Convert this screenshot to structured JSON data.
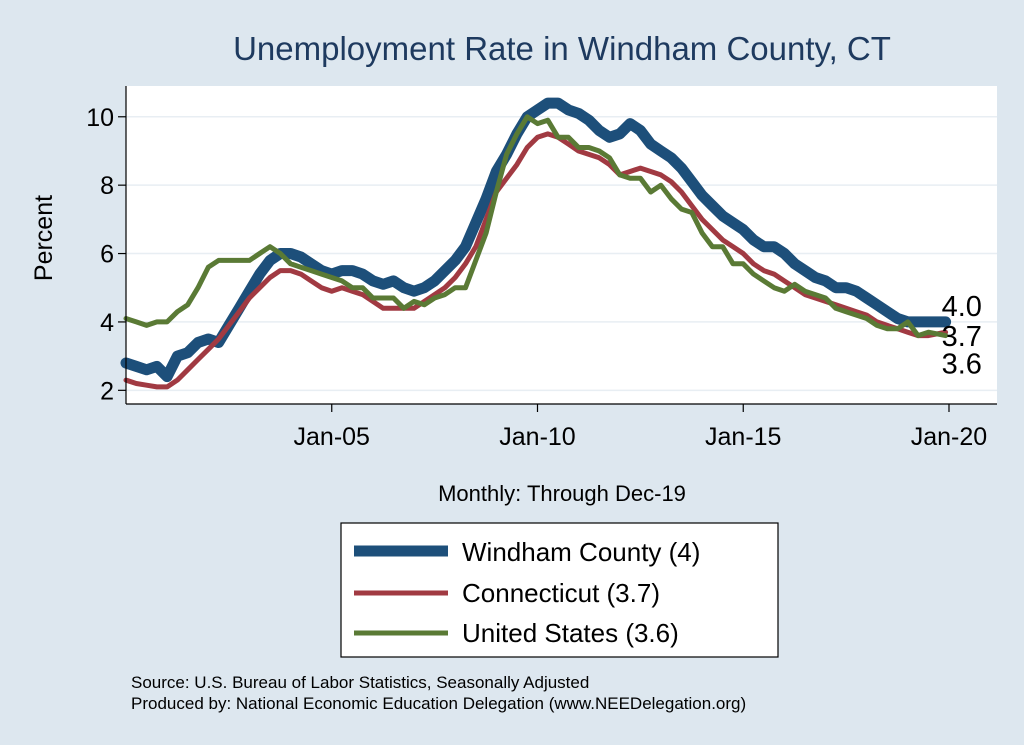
{
  "chart_data": {
    "type": "line",
    "title": "Unemployment Rate in Windham  County, CT",
    "ylabel": "Percent",
    "xlabel": "Monthly: Through Dec-19",
    "x_ticks": [
      "Jan-05",
      "Jan-10",
      "Jan-15",
      "Jan-20"
    ],
    "y_ticks": [
      "2",
      "4",
      "6",
      "8",
      "10"
    ],
    "ylim": [
      1.6,
      10.9
    ],
    "xlim": [
      "2000-01",
      "2021-03"
    ],
    "grid": true,
    "legend_position": "bottom",
    "series": [
      {
        "name": "Windham  County (4)",
        "color": "#1d4f7a",
        "end_label": "4.0",
        "points": [
          [
            "2000-01",
            2.8
          ],
          [
            "2000-04",
            2.7
          ],
          [
            "2000-07",
            2.6
          ],
          [
            "2000-10",
            2.7
          ],
          [
            "2001-01",
            2.4
          ],
          [
            "2001-04",
            3.0
          ],
          [
            "2001-07",
            3.1
          ],
          [
            "2001-10",
            3.4
          ],
          [
            "2002-01",
            3.5
          ],
          [
            "2002-04",
            3.4
          ],
          [
            "2002-07",
            3.9
          ],
          [
            "2002-10",
            4.4
          ],
          [
            "2003-01",
            4.9
          ],
          [
            "2003-04",
            5.4
          ],
          [
            "2003-07",
            5.8
          ],
          [
            "2003-10",
            6.0
          ],
          [
            "2004-01",
            6.0
          ],
          [
            "2004-04",
            5.9
          ],
          [
            "2004-07",
            5.7
          ],
          [
            "2004-10",
            5.5
          ],
          [
            "2005-01",
            5.4
          ],
          [
            "2005-04",
            5.5
          ],
          [
            "2005-07",
            5.5
          ],
          [
            "2005-10",
            5.4
          ],
          [
            "2006-01",
            5.2
          ],
          [
            "2006-04",
            5.1
          ],
          [
            "2006-07",
            5.2
          ],
          [
            "2006-10",
            5.0
          ],
          [
            "2007-01",
            4.9
          ],
          [
            "2007-04",
            5.0
          ],
          [
            "2007-07",
            5.2
          ],
          [
            "2007-10",
            5.5
          ],
          [
            "2008-01",
            5.8
          ],
          [
            "2008-04",
            6.2
          ],
          [
            "2008-07",
            6.9
          ],
          [
            "2008-10",
            7.6
          ],
          [
            "2009-01",
            8.4
          ],
          [
            "2009-04",
            8.9
          ],
          [
            "2009-07",
            9.5
          ],
          [
            "2009-10",
            10.0
          ],
          [
            "2010-01",
            10.2
          ],
          [
            "2010-04",
            10.4
          ],
          [
            "2010-07",
            10.4
          ],
          [
            "2010-10",
            10.2
          ],
          [
            "2011-01",
            10.1
          ],
          [
            "2011-04",
            9.9
          ],
          [
            "2011-07",
            9.6
          ],
          [
            "2011-10",
            9.4
          ],
          [
            "2012-01",
            9.5
          ],
          [
            "2012-04",
            9.8
          ],
          [
            "2012-07",
            9.6
          ],
          [
            "2012-10",
            9.2
          ],
          [
            "2013-01",
            9.0
          ],
          [
            "2013-04",
            8.8
          ],
          [
            "2013-07",
            8.5
          ],
          [
            "2013-10",
            8.1
          ],
          [
            "2014-01",
            7.7
          ],
          [
            "2014-04",
            7.4
          ],
          [
            "2014-07",
            7.1
          ],
          [
            "2014-10",
            6.9
          ],
          [
            "2015-01",
            6.7
          ],
          [
            "2015-04",
            6.4
          ],
          [
            "2015-07",
            6.2
          ],
          [
            "2015-10",
            6.2
          ],
          [
            "2016-01",
            6.0
          ],
          [
            "2016-04",
            5.7
          ],
          [
            "2016-07",
            5.5
          ],
          [
            "2016-10",
            5.3
          ],
          [
            "2017-01",
            5.2
          ],
          [
            "2017-04",
            5.0
          ],
          [
            "2017-07",
            5.0
          ],
          [
            "2017-10",
            4.9
          ],
          [
            "2018-01",
            4.7
          ],
          [
            "2018-04",
            4.5
          ],
          [
            "2018-07",
            4.3
          ],
          [
            "2018-10",
            4.1
          ],
          [
            "2019-01",
            4.0
          ],
          [
            "2019-04",
            4.0
          ],
          [
            "2019-07",
            4.0
          ],
          [
            "2019-12",
            4.0
          ]
        ]
      },
      {
        "name": "Connecticut (3.7)",
        "color": "#a13a42",
        "end_label": "3.7",
        "points": [
          [
            "2000-01",
            2.3
          ],
          [
            "2000-04",
            2.2
          ],
          [
            "2000-07",
            2.15
          ],
          [
            "2000-10",
            2.1
          ],
          [
            "2001-01",
            2.1
          ],
          [
            "2001-04",
            2.3
          ],
          [
            "2001-07",
            2.6
          ],
          [
            "2001-10",
            2.9
          ],
          [
            "2002-01",
            3.2
          ],
          [
            "2002-04",
            3.5
          ],
          [
            "2002-07",
            3.9
          ],
          [
            "2002-10",
            4.3
          ],
          [
            "2003-01",
            4.7
          ],
          [
            "2003-04",
            5.0
          ],
          [
            "2003-07",
            5.3
          ],
          [
            "2003-10",
            5.5
          ],
          [
            "2004-01",
            5.5
          ],
          [
            "2004-04",
            5.4
          ],
          [
            "2004-07",
            5.2
          ],
          [
            "2004-10",
            5.0
          ],
          [
            "2005-01",
            4.9
          ],
          [
            "2005-04",
            5.0
          ],
          [
            "2005-07",
            4.9
          ],
          [
            "2005-10",
            4.8
          ],
          [
            "2006-01",
            4.6
          ],
          [
            "2006-04",
            4.4
          ],
          [
            "2006-07",
            4.4
          ],
          [
            "2006-10",
            4.4
          ],
          [
            "2007-01",
            4.4
          ],
          [
            "2007-04",
            4.6
          ],
          [
            "2007-07",
            4.8
          ],
          [
            "2007-10",
            5.0
          ],
          [
            "2008-01",
            5.3
          ],
          [
            "2008-04",
            5.7
          ],
          [
            "2008-07",
            6.2
          ],
          [
            "2008-10",
            7.0
          ],
          [
            "2009-01",
            7.8
          ],
          [
            "2009-04",
            8.2
          ],
          [
            "2009-07",
            8.6
          ],
          [
            "2009-10",
            9.1
          ],
          [
            "2010-01",
            9.4
          ],
          [
            "2010-04",
            9.5
          ],
          [
            "2010-07",
            9.4
          ],
          [
            "2010-10",
            9.2
          ],
          [
            "2011-01",
            9.0
          ],
          [
            "2011-04",
            8.9
          ],
          [
            "2011-07",
            8.8
          ],
          [
            "2011-10",
            8.6
          ],
          [
            "2012-01",
            8.3
          ],
          [
            "2012-04",
            8.4
          ],
          [
            "2012-07",
            8.5
          ],
          [
            "2012-10",
            8.4
          ],
          [
            "2013-01",
            8.3
          ],
          [
            "2013-04",
            8.1
          ],
          [
            "2013-07",
            7.8
          ],
          [
            "2013-10",
            7.4
          ],
          [
            "2014-01",
            7.0
          ],
          [
            "2014-04",
            6.7
          ],
          [
            "2014-07",
            6.4
          ],
          [
            "2014-10",
            6.2
          ],
          [
            "2015-01",
            6.0
          ],
          [
            "2015-04",
            5.7
          ],
          [
            "2015-07",
            5.5
          ],
          [
            "2015-10",
            5.4
          ],
          [
            "2016-01",
            5.2
          ],
          [
            "2016-04",
            5.0
          ],
          [
            "2016-07",
            4.8
          ],
          [
            "2016-10",
            4.7
          ],
          [
            "2017-01",
            4.6
          ],
          [
            "2017-04",
            4.5
          ],
          [
            "2017-07",
            4.4
          ],
          [
            "2017-10",
            4.3
          ],
          [
            "2018-01",
            4.2
          ],
          [
            "2018-04",
            4.0
          ],
          [
            "2018-07",
            3.9
          ],
          [
            "2018-10",
            3.8
          ],
          [
            "2019-01",
            3.7
          ],
          [
            "2019-04",
            3.6
          ],
          [
            "2019-07",
            3.6
          ],
          [
            "2019-12",
            3.7
          ]
        ]
      },
      {
        "name": "United States (3.6)",
        "color": "#5a7a35",
        "end_label": "3.6",
        "points": [
          [
            "2000-01",
            4.1
          ],
          [
            "2000-04",
            4.0
          ],
          [
            "2000-07",
            3.9
          ],
          [
            "2000-10",
            4.0
          ],
          [
            "2001-01",
            4.0
          ],
          [
            "2001-04",
            4.3
          ],
          [
            "2001-07",
            4.5
          ],
          [
            "2001-10",
            5.0
          ],
          [
            "2002-01",
            5.6
          ],
          [
            "2002-04",
            5.8
          ],
          [
            "2002-07",
            5.8
          ],
          [
            "2002-10",
            5.8
          ],
          [
            "2003-01",
            5.8
          ],
          [
            "2003-04",
            6.0
          ],
          [
            "2003-07",
            6.2
          ],
          [
            "2003-10",
            6.0
          ],
          [
            "2004-01",
            5.7
          ],
          [
            "2004-04",
            5.6
          ],
          [
            "2004-07",
            5.5
          ],
          [
            "2004-10",
            5.4
          ],
          [
            "2005-01",
            5.3
          ],
          [
            "2005-04",
            5.2
          ],
          [
            "2005-07",
            5.0
          ],
          [
            "2005-10",
            5.0
          ],
          [
            "2006-01",
            4.7
          ],
          [
            "2006-04",
            4.7
          ],
          [
            "2006-07",
            4.7
          ],
          [
            "2006-10",
            4.4
          ],
          [
            "2007-01",
            4.6
          ],
          [
            "2007-04",
            4.5
          ],
          [
            "2007-07",
            4.7
          ],
          [
            "2007-10",
            4.8
          ],
          [
            "2008-01",
            5.0
          ],
          [
            "2008-04",
            5.0
          ],
          [
            "2008-07",
            5.8
          ],
          [
            "2008-10",
            6.6
          ],
          [
            "2009-01",
            7.8
          ],
          [
            "2009-04",
            8.9
          ],
          [
            "2009-07",
            9.5
          ],
          [
            "2009-10",
            10.0
          ],
          [
            "2010-01",
            9.8
          ],
          [
            "2010-04",
            9.9
          ],
          [
            "2010-07",
            9.4
          ],
          [
            "2010-10",
            9.4
          ],
          [
            "2011-01",
            9.1
          ],
          [
            "2011-04",
            9.1
          ],
          [
            "2011-07",
            9.0
          ],
          [
            "2011-10",
            8.8
          ],
          [
            "2012-01",
            8.3
          ],
          [
            "2012-04",
            8.2
          ],
          [
            "2012-07",
            8.2
          ],
          [
            "2012-10",
            7.8
          ],
          [
            "2013-01",
            8.0
          ],
          [
            "2013-04",
            7.6
          ],
          [
            "2013-07",
            7.3
          ],
          [
            "2013-10",
            7.2
          ],
          [
            "2014-01",
            6.6
          ],
          [
            "2014-04",
            6.2
          ],
          [
            "2014-07",
            6.2
          ],
          [
            "2014-10",
            5.7
          ],
          [
            "2015-01",
            5.7
          ],
          [
            "2015-04",
            5.4
          ],
          [
            "2015-07",
            5.2
          ],
          [
            "2015-10",
            5.0
          ],
          [
            "2016-01",
            4.9
          ],
          [
            "2016-04",
            5.1
          ],
          [
            "2016-07",
            4.9
          ],
          [
            "2016-10",
            4.8
          ],
          [
            "2017-01",
            4.7
          ],
          [
            "2017-04",
            4.4
          ],
          [
            "2017-07",
            4.3
          ],
          [
            "2017-10",
            4.2
          ],
          [
            "2018-01",
            4.1
          ],
          [
            "2018-04",
            3.9
          ],
          [
            "2018-07",
            3.8
          ],
          [
            "2018-10",
            3.8
          ],
          [
            "2019-01",
            4.0
          ],
          [
            "2019-04",
            3.6
          ],
          [
            "2019-07",
            3.7
          ],
          [
            "2019-12",
            3.6
          ]
        ]
      }
    ]
  },
  "source": {
    "line1": "Source: U.S. Bureau of Labor Statistics, Seasonally Adjusted",
    "line2": "Produced by: National Economic Education Delegation (www.NEEDelegation.org)"
  }
}
